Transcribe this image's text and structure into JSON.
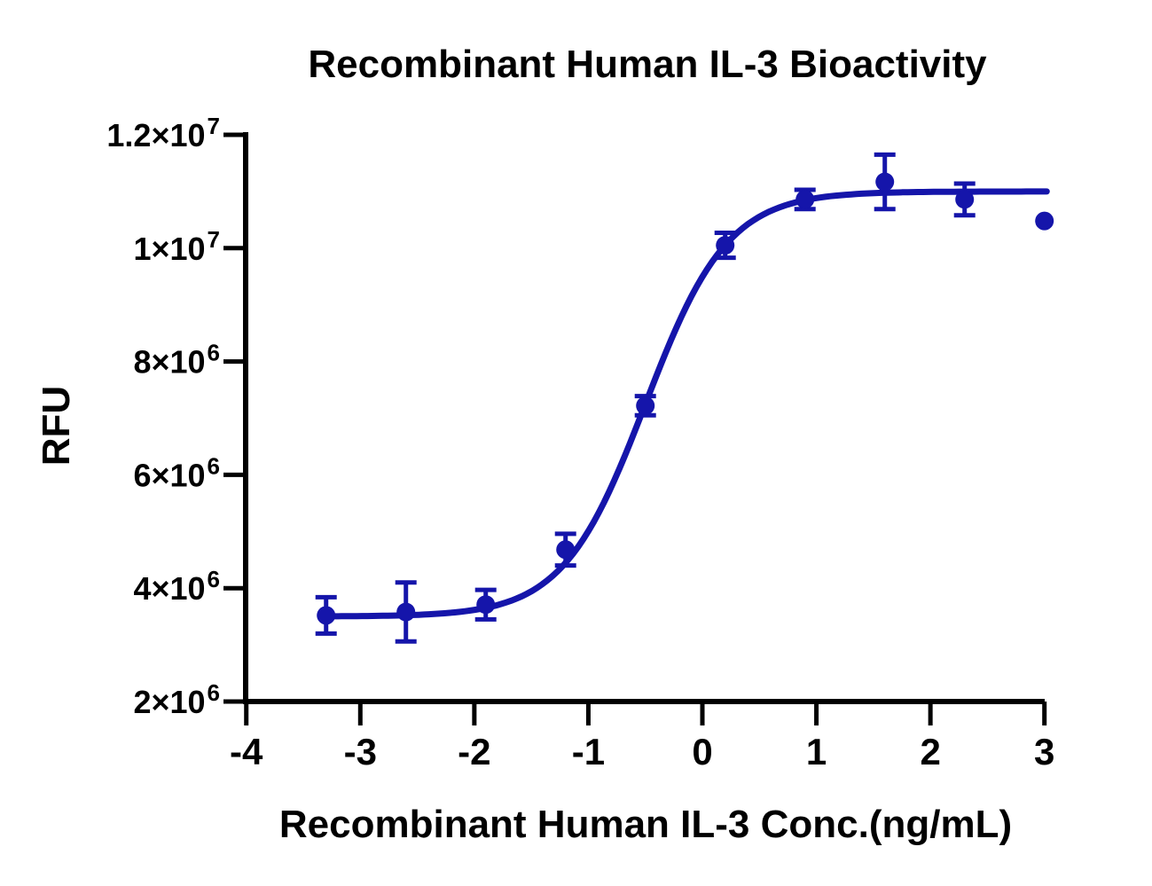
{
  "chart_data": {
    "type": "scatter",
    "subtype": "dose-response-sigmoidal-fit",
    "title": "Recombinant Human IL-3 Bioactivity",
    "xlabel": "Recombinant Human IL-3 Conc.(ng/mL)",
    "ylabel": "RFU",
    "x_scale": "log10",
    "xlim": [
      -4,
      3
    ],
    "ylim": [
      2000000,
      12000000
    ],
    "grid": false,
    "legend_position": "none",
    "xticks": [
      {
        "v": -4,
        "label": "-4"
      },
      {
        "v": -3,
        "label": "-3"
      },
      {
        "v": -2,
        "label": "-2"
      },
      {
        "v": -1,
        "label": "-1"
      },
      {
        "v": 0,
        "label": "0"
      },
      {
        "v": 1,
        "label": "1"
      },
      {
        "v": 2,
        "label": "2"
      },
      {
        "v": 3,
        "label": "3"
      }
    ],
    "yticks": [
      {
        "v": 2000000,
        "mantissa": "2×10",
        "exponent": "6"
      },
      {
        "v": 4000000,
        "mantissa": "4×10",
        "exponent": "6"
      },
      {
        "v": 6000000,
        "mantissa": "6×10",
        "exponent": "6"
      },
      {
        "v": 8000000,
        "mantissa": "8×10",
        "exponent": "6"
      },
      {
        "v": 10000000,
        "mantissa": "1×10",
        "exponent": "7"
      },
      {
        "v": 12000000,
        "mantissa": "1.2×10",
        "exponent": "7"
      }
    ],
    "series": [
      {
        "name": "Recombinant Human IL-3",
        "x_log10_conc": [
          -3.3,
          -2.6,
          -1.9,
          -1.2,
          -0.5,
          0.2,
          0.9,
          1.6,
          2.3,
          3.0
        ],
        "y_rfu": [
          3520000,
          3580000,
          3710000,
          4680000,
          7220000,
          10050000,
          10860000,
          11170000,
          10860000,
          10480000
        ],
        "y_err_rfu": [
          320000,
          520000,
          260000,
          280000,
          170000,
          220000,
          170000,
          480000,
          280000,
          0
        ]
      }
    ],
    "fit_curve": {
      "model": "4PL",
      "bottom_rfu": 3500000,
      "top_rfu": 11000000,
      "log10_ec50": -0.5,
      "hill_slope": 1.2,
      "x_range": [
        -3.3,
        3.02
      ]
    },
    "colors": {
      "series": "#1515AA",
      "axis": "#000000",
      "text": "#000000"
    }
  }
}
